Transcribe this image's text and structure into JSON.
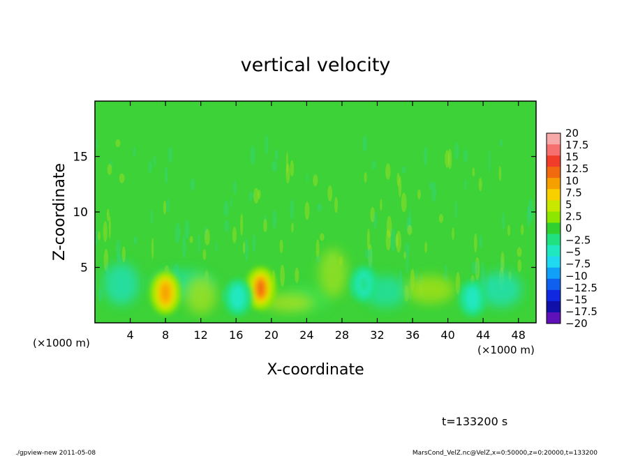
{
  "chart_data": {
    "type": "heatmap",
    "title": "vertical velocity",
    "xlabel": "X-coordinate",
    "ylabel": "Z-coordinate",
    "x_unit_left": "(×1000 m)",
    "x_unit_right": "(×1000 m)",
    "xlim": [
      0,
      50
    ],
    "ylim": [
      0,
      20
    ],
    "x_ticks": [
      "4",
      "8",
      "12",
      "16",
      "20",
      "24",
      "28",
      "32",
      "36",
      "40",
      "44",
      "48"
    ],
    "x_tick_values": [
      4,
      8,
      12,
      16,
      20,
      24,
      28,
      32,
      36,
      40,
      44,
      48
    ],
    "y_ticks": [
      "5",
      "10",
      "15"
    ],
    "y_tick_values": [
      5,
      10,
      15
    ],
    "colorbar": {
      "labels": [
        "20",
        "17.5",
        "15",
        "12.5",
        "10",
        "7.5",
        "5",
        "2.5",
        "0",
        "−2.5",
        "−5",
        "−7.5",
        "−10",
        "−12.5",
        "−15",
        "−17.5",
        "−20"
      ],
      "colors": [
        "#f7a8a8",
        "#f77070",
        "#f03c28",
        "#f26a10",
        "#f5a000",
        "#f8d000",
        "#c8e800",
        "#8ce600",
        "#30d030",
        "#20e080",
        "#20e8c0",
        "#20d8f0",
        "#10a0f8",
        "#1060f0",
        "#1028e0",
        "#1010a8",
        "#6010b8"
      ]
    },
    "features": [
      {
        "name": "updraft",
        "x": 8.0,
        "z": 2.7,
        "peak": 10
      },
      {
        "name": "updraft",
        "x": 18.8,
        "z": 3.1,
        "peak": 12
      },
      {
        "name": "downdraft",
        "x": 16.2,
        "z": 2.3,
        "peak": -6
      },
      {
        "name": "downdraft",
        "x": 42.8,
        "z": 2.2,
        "peak": -5
      },
      {
        "name": "downdraft",
        "x": 30.5,
        "z": 3.5,
        "peak": -3
      }
    ],
    "time_label": "t=133200 s"
  },
  "footer": {
    "left": "./gpview-new  2011-05-08",
    "right": "MarsCond_VelZ.nc@VelZ,x=0:50000,z=0:20000,t=133200"
  }
}
